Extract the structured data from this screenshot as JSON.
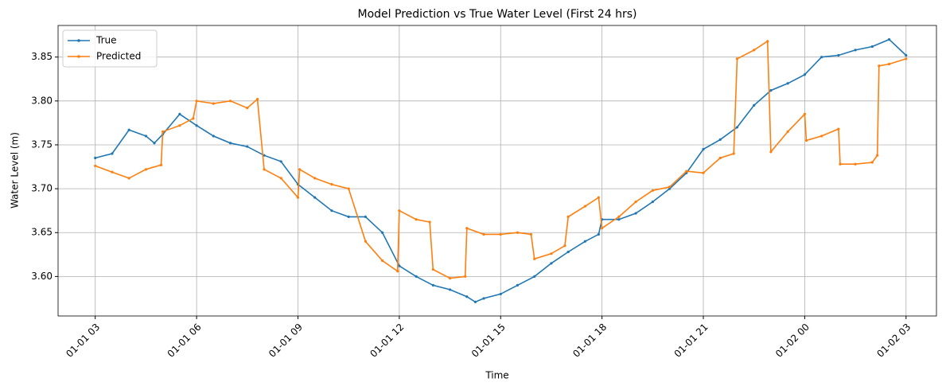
{
  "chart_data": {
    "type": "line",
    "title": "Model Prediction vs True Water Level (First 24 hrs)",
    "xlabel": "Time",
    "ylabel": "Water Level (m)",
    "xlim": [
      1.9,
      27.9
    ],
    "xticks": [
      {
        "value": 3,
        "label": "01-01 03"
      },
      {
        "value": 6,
        "label": "01-01 06"
      },
      {
        "value": 9,
        "label": "01-01 09"
      },
      {
        "value": 12,
        "label": "01-01 12"
      },
      {
        "value": 15,
        "label": "01-01 15"
      },
      {
        "value": 18,
        "label": "01-01 18"
      },
      {
        "value": 21,
        "label": "01-01 21"
      },
      {
        "value": 24,
        "label": "01-02 00"
      },
      {
        "value": 27,
        "label": "01-02 03"
      }
    ],
    "ylim": [
      3.555,
      3.886
    ],
    "yticks": [
      {
        "value": 3.6,
        "label": "3.60"
      },
      {
        "value": 3.65,
        "label": "3.65"
      },
      {
        "value": 3.7,
        "label": "3.70"
      },
      {
        "value": 3.75,
        "label": "3.75"
      },
      {
        "value": 3.8,
        "label": "3.80"
      },
      {
        "value": 3.85,
        "label": "3.85"
      }
    ],
    "grid": true,
    "legend": "upper left",
    "series": [
      {
        "name": "True",
        "color": "#1f77b4",
        "x": [
          3.0,
          3.5,
          4.0,
          4.5,
          4.75,
          5.0,
          5.5,
          6.0,
          6.5,
          7.0,
          7.5,
          8.0,
          8.5,
          9.0,
          9.5,
          10.0,
          10.5,
          11.0,
          11.5,
          12.0,
          12.5,
          13.0,
          13.5,
          14.0,
          14.25,
          14.5,
          15.0,
          15.5,
          16.0,
          16.5,
          17.0,
          17.5,
          17.9,
          18.0,
          18.5,
          19.0,
          19.5,
          20.0,
          20.5,
          21.0,
          21.5,
          22.0,
          22.5,
          23.0,
          23.5,
          24.0,
          24.5,
          25.0,
          25.5,
          26.0,
          26.5,
          27.0
        ],
        "values": [
          3.735,
          3.74,
          3.767,
          3.76,
          3.752,
          3.762,
          3.785,
          3.772,
          3.76,
          3.752,
          3.748,
          3.738,
          3.731,
          3.705,
          3.69,
          3.675,
          3.668,
          3.668,
          3.65,
          3.612,
          3.6,
          3.59,
          3.585,
          3.577,
          3.571,
          3.575,
          3.58,
          3.59,
          3.6,
          3.615,
          3.628,
          3.64,
          3.648,
          3.665,
          3.665,
          3.672,
          3.685,
          3.7,
          3.718,
          3.745,
          3.756,
          3.77,
          3.795,
          3.812,
          3.82,
          3.83,
          3.85,
          3.852,
          3.858,
          3.862,
          3.87,
          3.852
        ]
      },
      {
        "name": "Predicted",
        "color": "#ff7f0e",
        "x": [
          3.0,
          3.5,
          4.0,
          4.5,
          4.95,
          5.0,
          5.5,
          5.9,
          6.0,
          6.5,
          7.0,
          7.5,
          7.8,
          8.0,
          8.5,
          9.0,
          9.05,
          9.5,
          10.0,
          10.5,
          11.0,
          11.5,
          11.95,
          12.0,
          12.5,
          12.9,
          13.0,
          13.5,
          13.95,
          14.0,
          14.5,
          15.0,
          15.5,
          15.9,
          16.0,
          16.5,
          16.9,
          17.0,
          17.5,
          17.9,
          18.0,
          18.5,
          19.0,
          19.5,
          20.0,
          20.5,
          21.0,
          21.5,
          21.9,
          22.0,
          22.5,
          22.9,
          23.0,
          23.5,
          24.0,
          24.05,
          24.5,
          25.0,
          25.05,
          25.5,
          26.0,
          26.15,
          26.2,
          26.5,
          27.0
        ],
        "values": [
          3.726,
          3.719,
          3.712,
          3.722,
          3.727,
          3.765,
          3.772,
          3.78,
          3.8,
          3.797,
          3.8,
          3.792,
          3.802,
          3.722,
          3.712,
          3.69,
          3.722,
          3.712,
          3.705,
          3.7,
          3.64,
          3.618,
          3.606,
          3.675,
          3.665,
          3.662,
          3.608,
          3.598,
          3.6,
          3.655,
          3.648,
          3.648,
          3.65,
          3.648,
          3.62,
          3.626,
          3.635,
          3.668,
          3.68,
          3.69,
          3.655,
          3.668,
          3.685,
          3.698,
          3.702,
          3.72,
          3.718,
          3.735,
          3.74,
          3.848,
          3.858,
          3.868,
          3.742,
          3.765,
          3.785,
          3.755,
          3.76,
          3.768,
          3.728,
          3.728,
          3.73,
          3.738,
          3.84,
          3.842,
          3.848
        ]
      }
    ]
  }
}
